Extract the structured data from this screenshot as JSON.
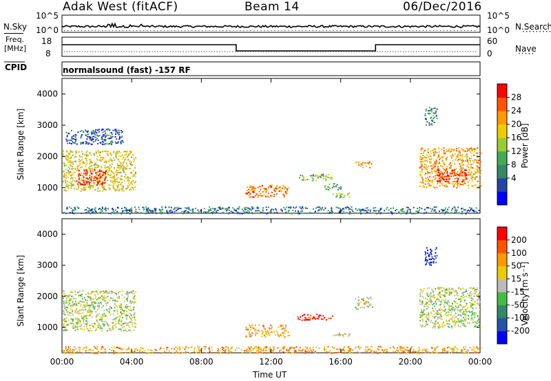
{
  "header": {
    "station": "Adak West (fitACF)",
    "beam": "Beam 14",
    "date": "06/Dec/2016"
  },
  "noise_panel": {
    "left_label": "N.Sky",
    "right_label": "N.Search",
    "left_ticks": [
      "10^5",
      "10^0"
    ],
    "right_ticks": [
      "10^5",
      "10^0"
    ]
  },
  "freq_panel": {
    "left_label_1": "Freq.",
    "left_label_2": "[MHz]",
    "right_label": "Nave",
    "left_ticks": [
      "18",
      "8"
    ],
    "right_ticks": [
      "60",
      "0"
    ]
  },
  "cpid": {
    "label": "CPID",
    "program": "normalsound (fast) -157 RF"
  },
  "colors": {
    "power_scale": [
      "#0000ff",
      "#2244aa",
      "#338866",
      "#44aa55",
      "#99cc33",
      "#eecc00",
      "#ff9900",
      "#ff5500",
      "#ff0000"
    ],
    "velocity_scale": [
      "#0000ff",
      "#2255aa",
      "#338866",
      "#44bb44",
      "#bbbbbb",
      "#eecc00",
      "#ff9900",
      "#ff5500",
      "#ff0000"
    ]
  },
  "chart_data": [
    {
      "type": "heatmap",
      "name": "power",
      "ylabel": "Slant Range [km]",
      "xlabel": "Time UT",
      "x_ticks": [
        "00:00",
        "04:00",
        "08:00",
        "12:00",
        "16:00",
        "20:00",
        "00:00"
      ],
      "y_ticks": [
        "4000",
        "3000",
        "2000",
        "1000"
      ],
      "ylim": [
        180,
        4500
      ],
      "xlim_hours": [
        0,
        24
      ],
      "colorbar": {
        "label": "Power [dB]",
        "ticks": [
          "28",
          "24",
          "20",
          "16",
          "12",
          "8",
          "4"
        ],
        "range": [
          0,
          30
        ]
      },
      "regions": [
        {
          "t0": 0.0,
          "t1": 4.2,
          "r0": 900,
          "r1": 2200,
          "level": 0.6
        },
        {
          "t0": 0.8,
          "t1": 2.5,
          "r0": 1100,
          "r1": 1600,
          "level": 0.95
        },
        {
          "t0": 0.2,
          "t1": 3.5,
          "r0": 2400,
          "r1": 2900,
          "level": 0.2
        },
        {
          "t0": 10.5,
          "t1": 13.0,
          "r0": 700,
          "r1": 1100,
          "level": 0.75
        },
        {
          "t0": 13.5,
          "t1": 15.5,
          "r0": 1250,
          "r1": 1450,
          "level": 0.45
        },
        {
          "t0": 15.0,
          "t1": 16.0,
          "r0": 950,
          "r1": 1150,
          "level": 0.35
        },
        {
          "t0": 15.5,
          "t1": 16.5,
          "r0": 700,
          "r1": 850,
          "level": 0.45
        },
        {
          "t0": 16.8,
          "t1": 17.8,
          "r0": 1650,
          "r1": 1850,
          "level": 0.7
        },
        {
          "t0": 20.5,
          "t1": 24.0,
          "r0": 1000,
          "r1": 2300,
          "level": 0.7
        },
        {
          "t0": 21.5,
          "t1": 23.2,
          "r0": 1200,
          "r1": 1600,
          "level": 0.95
        },
        {
          "t0": 20.8,
          "t1": 21.5,
          "r0": 3000,
          "r1": 3600,
          "level": 0.3
        },
        {
          "t0": 0.0,
          "t1": 24.0,
          "r0": 180,
          "r1": 400,
          "level": 0.25
        }
      ]
    },
    {
      "type": "heatmap",
      "name": "velocity",
      "ylabel": "Slant Range [km]",
      "xlabel": "Time UT",
      "x_ticks": [
        "00:00",
        "04:00",
        "08:00",
        "12:00",
        "16:00",
        "20:00",
        "00:00"
      ],
      "y_ticks": [
        "4000",
        "3000",
        "2000",
        "1000"
      ],
      "ylim": [
        180,
        4500
      ],
      "xlim_hours": [
        0,
        24
      ],
      "colorbar": {
        "label": "Velocity [m s⁻¹]",
        "ticks": [
          "200",
          "100",
          "50",
          "15",
          "-15",
          "-50",
          "-100",
          "-200"
        ],
        "range": [
          -250,
          250
        ]
      },
      "regions": [
        {
          "t0": 0.0,
          "t1": 4.2,
          "r0": 900,
          "r1": 2200,
          "level": 0.5
        },
        {
          "t0": 10.5,
          "t1": 13.0,
          "r0": 700,
          "r1": 1100,
          "level": 0.65
        },
        {
          "t0": 13.5,
          "t1": 15.5,
          "r0": 1250,
          "r1": 1450,
          "level": 0.95
        },
        {
          "t0": 15.5,
          "t1": 16.5,
          "r0": 700,
          "r1": 850,
          "level": 0.6
        },
        {
          "t0": 16.8,
          "t1": 17.8,
          "r0": 1600,
          "r1": 2000,
          "level": 0.55
        },
        {
          "t0": 20.5,
          "t1": 24.0,
          "r0": 1000,
          "r1": 2300,
          "level": 0.5
        },
        {
          "t0": 20.8,
          "t1": 21.5,
          "r0": 3000,
          "r1": 3600,
          "level": 0.05
        },
        {
          "t0": 0.0,
          "t1": 24.0,
          "r0": 180,
          "r1": 400,
          "level": 0.7
        }
      ]
    }
  ]
}
